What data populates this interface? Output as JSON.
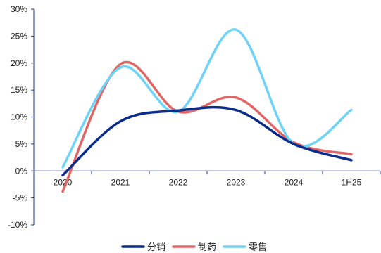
{
  "chart_data": {
    "type": "line",
    "title": "",
    "xlabel": "",
    "ylabel": "",
    "categories": [
      "2020",
      "2021",
      "2022",
      "2023",
      "2024",
      "1H25"
    ],
    "y_ticks": [
      "30%",
      "25%",
      "20%",
      "15%",
      "10%",
      "5%",
      "0%",
      "-5%",
      "-10%"
    ],
    "ylim": [
      -10,
      30
    ],
    "grid": false,
    "legend_position": "bottom",
    "series": [
      {
        "name": "分销",
        "color": "#0b2c8a",
        "values": [
          -0.8,
          9.2,
          11.2,
          11.3,
          5.0,
          2.0
        ]
      },
      {
        "name": "制药",
        "color": "#e06666",
        "values": [
          -3.8,
          19.8,
          11.0,
          13.6,
          5.3,
          3.1
        ]
      },
      {
        "name": "零售",
        "color": "#6fd3f7",
        "values": [
          0.7,
          19.2,
          11.0,
          26.2,
          5.0,
          11.3
        ]
      }
    ]
  }
}
